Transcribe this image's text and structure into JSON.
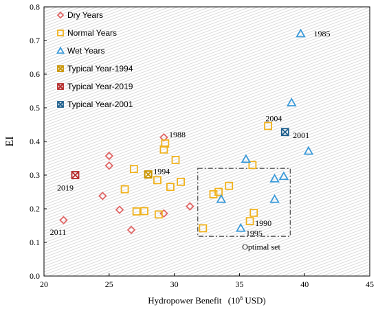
{
  "chart_data": {
    "type": "scatter",
    "title": "",
    "xlabel_main": "Hydropower Benefit",
    "xlabel_unit_pre": "(10",
    "xlabel_unit_sup": "8",
    "xlabel_unit_post": " USD)",
    "ylabel": "EI",
    "xlim": [
      20,
      45
    ],
    "ylim": [
      0,
      0.8
    ],
    "xticks": [
      20,
      25,
      30,
      35,
      40,
      45
    ],
    "yticks": [
      0.0,
      0.1,
      0.2,
      0.3,
      0.4,
      0.5,
      0.6,
      0.7,
      0.8
    ],
    "grid": false,
    "background": "hatched",
    "legend_position": "top-left",
    "series": [
      {
        "name": "Dry Years",
        "marker": "diamond",
        "color": "#e06666",
        "points": [
          [
            25.0,
            0.357
          ],
          [
            25.0,
            0.328
          ],
          [
            24.5,
            0.238
          ],
          [
            25.8,
            0.197
          ],
          [
            21.5,
            0.166
          ],
          [
            26.7,
            0.137
          ],
          [
            29.2,
            0.186
          ],
          [
            31.2,
            0.207
          ],
          [
            29.2,
            0.412
          ]
        ]
      },
      {
        "name": "Normal Years",
        "marker": "square",
        "color": "#f0b21c",
        "points": [
          [
            29.3,
            0.394
          ],
          [
            29.2,
            0.376
          ],
          [
            30.1,
            0.345
          ],
          [
            26.9,
            0.318
          ],
          [
            28.0,
            0.302
          ],
          [
            28.7,
            0.285
          ],
          [
            30.5,
            0.28
          ],
          [
            29.7,
            0.265
          ],
          [
            26.2,
            0.258
          ],
          [
            27.7,
            0.193
          ],
          [
            27.1,
            0.192
          ],
          [
            28.8,
            0.183
          ],
          [
            34.2,
            0.268
          ],
          [
            33.4,
            0.25
          ],
          [
            33.0,
            0.243
          ],
          [
            36.0,
            0.33
          ],
          [
            36.1,
            0.188
          ],
          [
            35.8,
            0.163
          ],
          [
            32.2,
            0.142
          ],
          [
            37.2,
            0.446
          ]
        ]
      },
      {
        "name": "Wet Years",
        "marker": "triangle",
        "color": "#3a9ad9",
        "points": [
          [
            39.7,
            0.72
          ],
          [
            39.0,
            0.515
          ],
          [
            40.3,
            0.371
          ],
          [
            35.5,
            0.347
          ],
          [
            37.7,
            0.289
          ],
          [
            38.4,
            0.296
          ],
          [
            33.6,
            0.228
          ],
          [
            37.7,
            0.228
          ],
          [
            35.1,
            0.142
          ]
        ]
      },
      {
        "name": "Typical Year-1994",
        "marker": "x-square",
        "color": "#c99400",
        "points": [
          [
            28.0,
            0.302
          ]
        ]
      },
      {
        "name": "Typical Year-2019",
        "marker": "x-square",
        "color": "#b52a2a",
        "points": [
          [
            22.4,
            0.3
          ]
        ]
      },
      {
        "name": "Typical Year-2001",
        "marker": "x-square",
        "color": "#1d5e8c",
        "points": [
          [
            38.5,
            0.428
          ]
        ]
      }
    ],
    "annotations": [
      {
        "text": "1985",
        "x": 40.7,
        "y": 0.72,
        "anchor": "start"
      },
      {
        "text": "1988",
        "x": 29.6,
        "y": 0.42,
        "anchor": "start"
      },
      {
        "text": "2004",
        "x": 37.0,
        "y": 0.468,
        "anchor": "start"
      },
      {
        "text": "2001",
        "x": 39.1,
        "y": 0.418,
        "anchor": "start"
      },
      {
        "text": "1994",
        "x": 28.4,
        "y": 0.311,
        "anchor": "start"
      },
      {
        "text": "2019",
        "x": 21.0,
        "y": 0.262,
        "anchor": "start"
      },
      {
        "text": "2011",
        "x": 21.7,
        "y": 0.131,
        "anchor": "end"
      },
      {
        "text": "1990",
        "x": 36.2,
        "y": 0.157,
        "anchor": "start"
      },
      {
        "text": "1995",
        "x": 35.5,
        "y": 0.128,
        "anchor": "start"
      },
      {
        "text": "Optimal set",
        "x": 35.2,
        "y": 0.087,
        "anchor": "start"
      }
    ],
    "optimal_box": {
      "x0": 31.8,
      "x1": 38.9,
      "y0": 0.118,
      "y1": 0.32
    }
  }
}
